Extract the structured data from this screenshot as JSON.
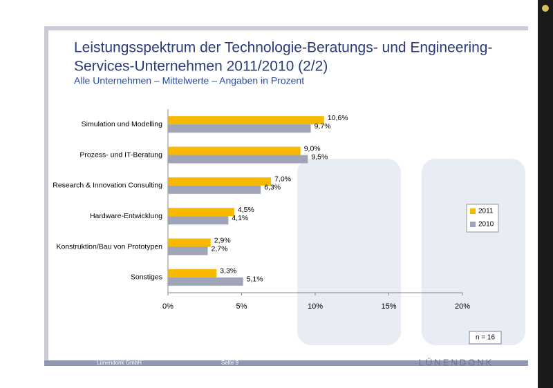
{
  "chart_data": {
    "type": "hbar",
    "title": "Leistungsspektrum der Technologie-Beratungs- und Engineering-",
    "title_line2": "Services-Unternehmen 2011/2010 (2/2)",
    "subtitle": "Alle Unternehmen – Mittelwerte – Angaben in Prozent",
    "categories": [
      "Simulation und Modelling",
      "Prozess- und IT-Beratung",
      "Research & Innovation Consulting",
      "Hardware-Entwicklung",
      "Konstruktion/Bau von Prototypen",
      "Sonstiges"
    ],
    "series": [
      {
        "name": "2011",
        "color": "#f7b900",
        "values": [
          10.6,
          9.0,
          7.0,
          4.5,
          2.9,
          3.3
        ],
        "value_labels": [
          "10,6%",
          "9,0%",
          "7,0%",
          "4,5%",
          "2,9%",
          "3,3%"
        ]
      },
      {
        "name": "2010",
        "color": "#9fa4b8",
        "values": [
          9.7,
          9.5,
          6.3,
          4.1,
          2.7,
          5.1
        ],
        "value_labels": [
          "9,7%",
          "9,5%",
          "6,3%",
          "4,1%",
          "2,7%",
          "5,1%"
        ]
      }
    ],
    "xlim": [
      0,
      20
    ],
    "xticks": [
      {
        "value": 0,
        "label": "0%"
      },
      {
        "value": 5,
        "label": "5%"
      },
      {
        "value": 10,
        "label": "10%"
      },
      {
        "value": 15,
        "label": "15%"
      },
      {
        "value": 20,
        "label": "20%"
      }
    ],
    "legend": "right",
    "note": "n = 16",
    "footer_left": "Lünendonk GmbH",
    "footer_right": "Seite 9",
    "logo": "LÜNENDONK"
  }
}
